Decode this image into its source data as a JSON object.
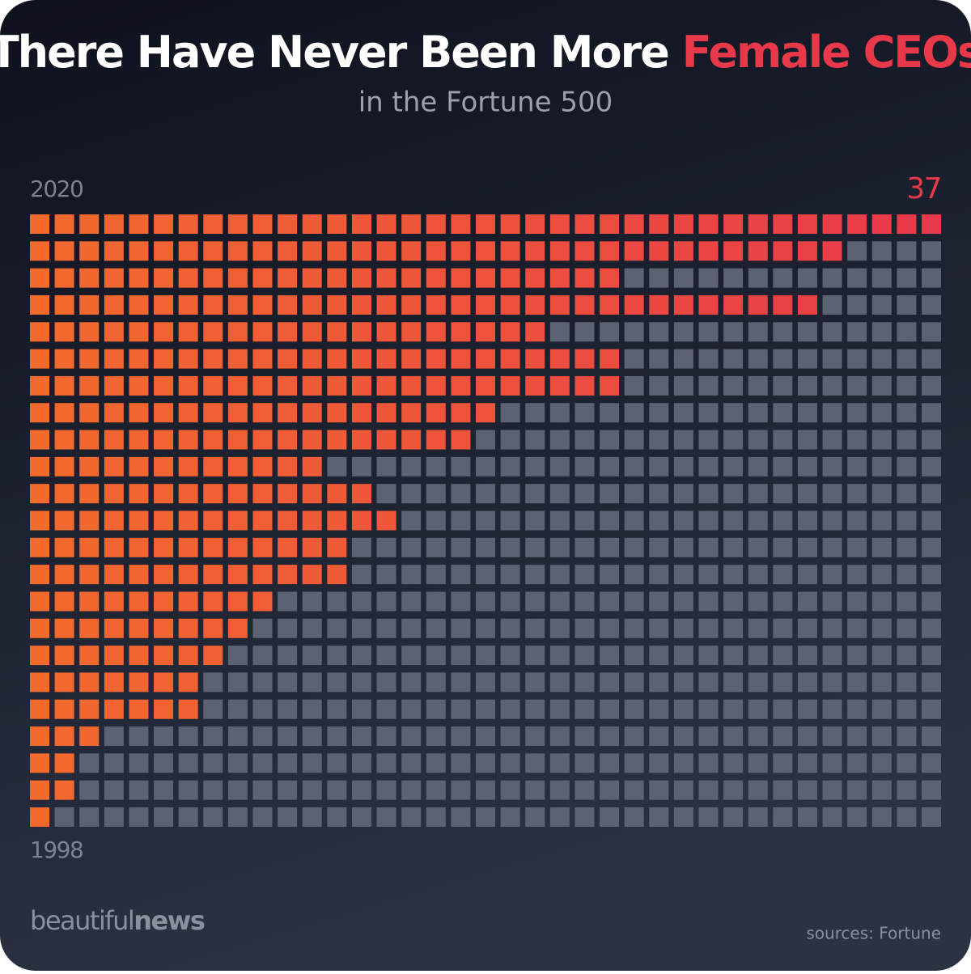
{
  "chart_data": {
    "type": "waffle",
    "title": "There Have Never Been More ",
    "title_highlight": "Female CEOs",
    "subtitle": "in the Fortune 500",
    "categories": [
      "1998",
      null,
      null,
      null,
      null,
      null,
      null,
      null,
      null,
      null,
      null,
      null,
      null,
      null,
      null,
      null,
      null,
      null,
      null,
      null,
      null,
      null,
      "2020"
    ],
    "values": [
      1,
      2,
      2,
      3,
      7,
      7,
      8,
      9,
      10,
      13,
      13,
      15,
      14,
      12,
      18,
      19,
      24,
      24,
      21,
      32,
      24,
      33,
      37
    ],
    "color_start": "#f26a2e",
    "color_end": "#e8394a",
    "empty_color": "#5b6272",
    "brand": [
      "beautiful",
      "news"
    ],
    "source": "sources: Fortune"
  }
}
